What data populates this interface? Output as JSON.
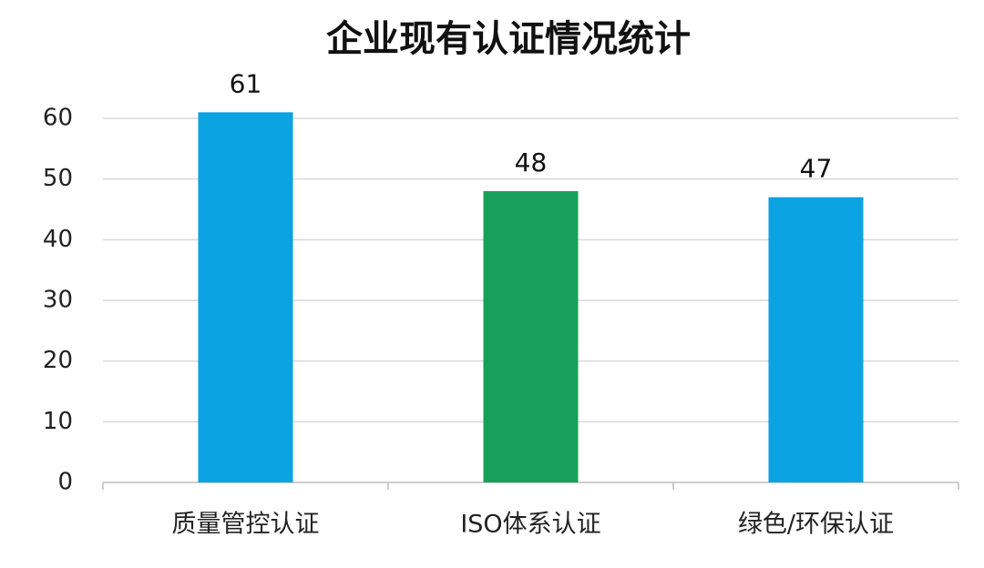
{
  "chart_data": {
    "type": "bar",
    "title": "企业现有认证情况统计",
    "categories": [
      "质量管控认证",
      "ISO体系认证",
      "绿色/环保认证"
    ],
    "values": [
      61,
      48,
      47
    ],
    "colors": [
      "#0ba3e2",
      "#18a05a",
      "#0ba3e2"
    ],
    "ylim": [
      0,
      60
    ],
    "yticks": [
      0,
      10,
      20,
      30,
      40,
      50,
      60
    ],
    "grid": true
  }
}
